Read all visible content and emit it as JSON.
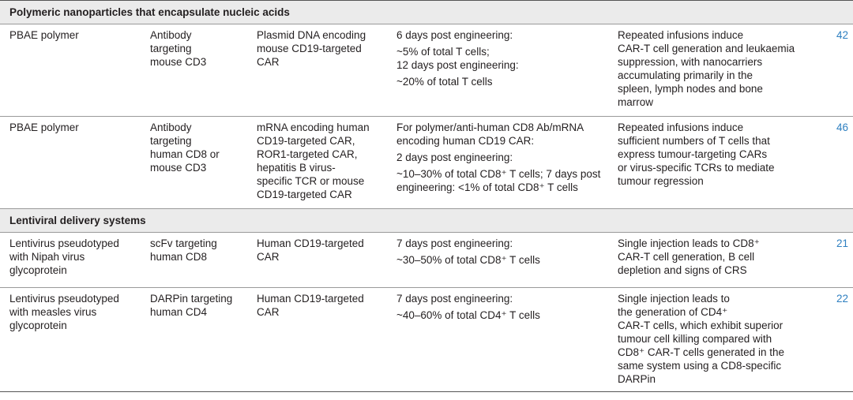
{
  "sections": [
    {
      "title": "Polymeric nanoparticles that encapsulate nucleic acids",
      "rows": [
        {
          "vector": [
            "PBAE polymer"
          ],
          "targeting": [
            "Antibody",
            "targeting",
            "mouse CD3"
          ],
          "cargo": [
            "Plasmid DNA encoding",
            "mouse CD19-targeted",
            "CAR"
          ],
          "efficiency_a": [
            "6 days post engineering:"
          ],
          "efficiency_b": [
            "~5% of total T cells;",
            "12 days post engineering:"
          ],
          "efficiency_c": [
            "~20% of total T cells"
          ],
          "outcome": [
            "Repeated infusions induce",
            "CAR-T cell generation and leukaemia",
            "suppression, with nanocarriers",
            "accumulating primarily in the",
            "spleen, lymph nodes and bone",
            "marrow"
          ],
          "ref": "42"
        },
        {
          "vector": [
            "PBAE polymer"
          ],
          "targeting": [
            "Antibody",
            "targeting",
            "human CD8 or",
            "mouse CD3"
          ],
          "cargo": [
            "mRNA encoding human",
            "CD19-targeted CAR,",
            "ROR1-targeted CAR,",
            "hepatitis B virus-",
            "specific TCR or mouse",
            "CD19-targeted CAR"
          ],
          "efficiency_a": [
            "For polymer/anti-human CD8 Ab/mRNA",
            "encoding human CD19 CAR:"
          ],
          "efficiency_b": [
            "2 days post engineering:"
          ],
          "efficiency_c": [
            "~10–30% of total CD8⁺ T cells; 7 days post",
            "engineering: <1% of total CD8⁺ T cells"
          ],
          "outcome": [
            "Repeated infusions induce",
            "sufficient numbers of T cells that",
            "express tumour-targeting CARs",
            "or virus-specific TCRs to mediate",
            "tumour regression"
          ],
          "ref": "46"
        }
      ]
    },
    {
      "title": "Lentiviral delivery systems",
      "rows": [
        {
          "vector": [
            "Lentivirus pseudotyped",
            "with Nipah virus",
            "glycoprotein"
          ],
          "targeting": [
            "scFv targeting",
            "human CD8"
          ],
          "cargo": [
            "Human CD19-targeted",
            "CAR"
          ],
          "efficiency_a": [
            "7 days post engineering:"
          ],
          "efficiency_b": [
            "~30–50% of total CD8⁺ T cells"
          ],
          "efficiency_c": [],
          "outcome": [
            "Single injection leads to CD8⁺",
            "CAR-T cell generation, B cell",
            "depletion and signs of CRS"
          ],
          "ref": "21"
        },
        {
          "vector": [
            "Lentivirus pseudotyped",
            "with measles virus",
            "glycoprotein"
          ],
          "targeting": [
            "DARPin targeting",
            "human CD4"
          ],
          "cargo": [
            "Human CD19-targeted",
            "CAR"
          ],
          "efficiency_a": [
            "7 days post engineering:"
          ],
          "efficiency_b": [
            "~40–60% of total CD4⁺ T cells"
          ],
          "efficiency_c": [],
          "outcome": [
            "Single injection leads to",
            "the generation of CD4⁺",
            "CAR-T cells, which exhibit superior",
            "tumour cell killing compared with",
            "CD8⁺ CAR-T cells generated in the",
            "same system using a CD8-specific",
            "DARPin"
          ],
          "ref": "22"
        }
      ]
    }
  ]
}
